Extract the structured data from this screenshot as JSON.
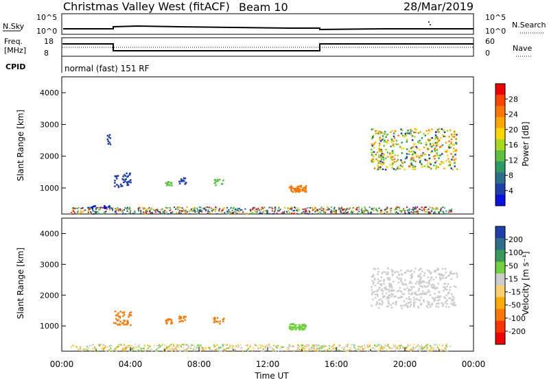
{
  "header": {
    "title": "Christmas Valley West (fitACF)",
    "beam": "Beam 10",
    "date": "28/Mar/2019"
  },
  "panels": {
    "nsky_label": "N.Sky",
    "nsearch_label": "N.Search",
    "noise_ticks_left": [
      "10^5",
      "10^0"
    ],
    "noise_ticks_right": [
      "10^5",
      "10^0"
    ],
    "freq_label_1": "Freq.",
    "freq_label_2": "[MHz]",
    "freq_ticks": [
      "18",
      "8"
    ],
    "nave_label": "Nave",
    "nave_ticks": [
      "60",
      "0"
    ],
    "cpid_label": "CPID",
    "cpid_text": "normal (fast) 151 RF"
  },
  "chart_data": [
    {
      "type": "heatmap",
      "title": "",
      "xlabel": "Time UT",
      "ylabel": "Slant Range [km]",
      "colorbar_label": "Power [dB]",
      "colorbar_ticks": [
        "28",
        "24",
        "20",
        "16",
        "12",
        "8",
        "4"
      ],
      "colorbar_colors": [
        "#ee0000",
        "#ff4400",
        "#ff7700",
        "#ffa500",
        "#ffd500",
        "#a8d820",
        "#5cc040",
        "#2e9a64",
        "#2d6e8a",
        "#1f3fa8",
        "#0a10e0"
      ],
      "yticks": [
        "4000",
        "3000",
        "2000",
        "1000"
      ],
      "ylim": [
        180,
        4500
      ],
      "xlim": [
        "00:00",
        "24:00"
      ],
      "patches": [
        {
          "t": [
            18.0,
            23.0
          ],
          "r": [
            1600,
            2900
          ],
          "color": "mix",
          "count": 420
        },
        {
          "t": [
            13.2,
            14.2
          ],
          "r": [
            900,
            1100
          ],
          "color": "#ff7700",
          "count": 60
        },
        {
          "t": [
            3.0,
            4.0
          ],
          "r": [
            1050,
            1500
          ],
          "color": "#1f3fa8",
          "count": 40
        },
        {
          "t": [
            6.0,
            6.4
          ],
          "r": [
            1100,
            1250
          ],
          "color": "#5cc040",
          "count": 14
        },
        {
          "t": [
            6.8,
            7.2
          ],
          "r": [
            1150,
            1350
          ],
          "color": "#1f3fa8",
          "count": 14
        },
        {
          "t": [
            8.8,
            9.4
          ],
          "r": [
            1100,
            1300
          ],
          "color": "#5cc040",
          "count": 14
        },
        {
          "t": [
            2.6,
            2.8
          ],
          "r": [
            2400,
            2700
          ],
          "color": "#1f3fa8",
          "count": 10
        },
        {
          "t": [
            1.5,
            3.0
          ],
          "r": [
            380,
            460
          ],
          "color": "#0a10e0",
          "count": 18
        }
      ]
    },
    {
      "type": "heatmap",
      "title": "",
      "xlabel": "Time UT",
      "ylabel": "Slant Range [km]",
      "colorbar_label": "Velocity [m s⁻¹]",
      "colorbar_ticks": [
        "200",
        "100",
        "50",
        "15",
        "-15",
        "-50",
        "-100",
        "-200"
      ],
      "colorbar_colors": [
        "#1f3fa8",
        "#2e6e8a",
        "#3a9a5a",
        "#70d040",
        "#cccccc",
        "#ffd070",
        "#ffaa00",
        "#ff7700",
        "#ff3300",
        "#ee0000"
      ],
      "yticks": [
        "4000",
        "3000",
        "2000",
        "1000"
      ],
      "ylim": [
        180,
        4500
      ],
      "xlim": [
        "00:00",
        "24:00"
      ],
      "xticks": [
        "00:00",
        "04:00",
        "08:00",
        "12:00",
        "16:00",
        "20:00",
        "00:00"
      ],
      "patches": [
        {
          "t": [
            18.0,
            23.0
          ],
          "r": [
            1600,
            2900
          ],
          "color": "#cccccc",
          "count": 420
        },
        {
          "t": [
            13.2,
            14.2
          ],
          "r": [
            900,
            1100
          ],
          "color": "#70d040",
          "count": 60
        },
        {
          "t": [
            3.0,
            4.0
          ],
          "r": [
            1050,
            1500
          ],
          "color": "#ff7700",
          "count": 40
        },
        {
          "t": [
            6.0,
            6.4
          ],
          "r": [
            1100,
            1250
          ],
          "color": "#ff7700",
          "count": 14
        },
        {
          "t": [
            6.8,
            7.2
          ],
          "r": [
            1150,
            1350
          ],
          "color": "#ff7700",
          "count": 14
        },
        {
          "t": [
            8.8,
            9.4
          ],
          "r": [
            1100,
            1300
          ],
          "color": "#ff7700",
          "count": 14
        }
      ]
    }
  ]
}
